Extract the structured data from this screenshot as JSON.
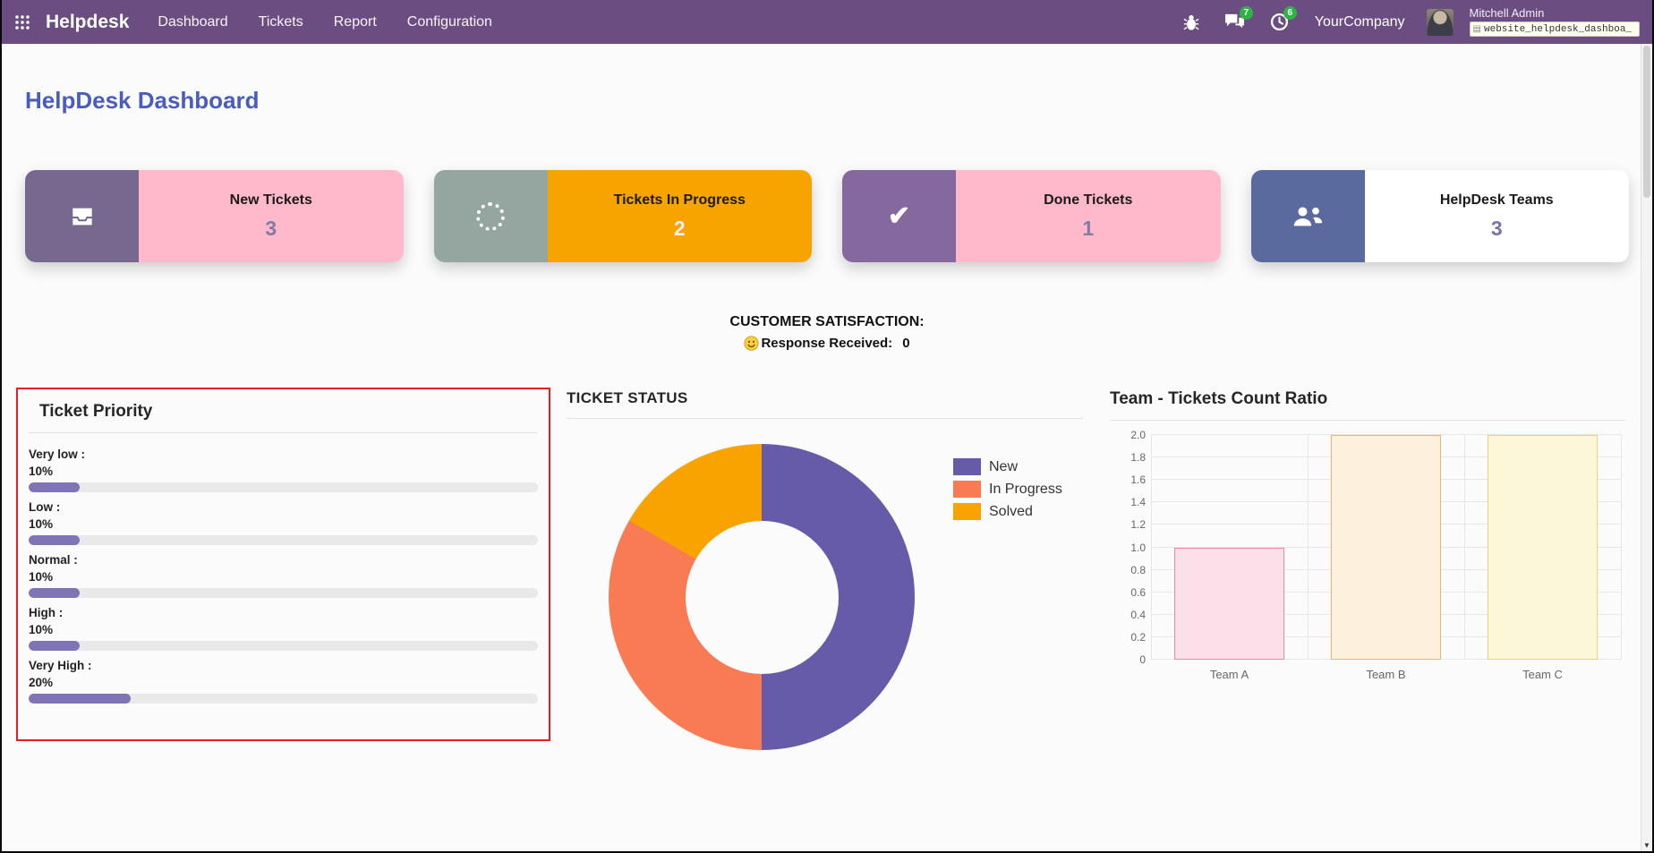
{
  "colors": {
    "navbar_bg": "#6c4d82",
    "page_title": "#4a5cbe",
    "badge_green": "#2fb344",
    "highlight_red": "#ed1c24"
  },
  "navbar": {
    "brand": "Helpdesk",
    "menus": [
      "Dashboard",
      "Tickets",
      "Report",
      "Configuration"
    ],
    "chat_badge": "7",
    "activity_badge": "6",
    "company": "YourCompany",
    "user": "Mitchell Admin",
    "debug_field": "website_helpdesk_dashboa_"
  },
  "page": {
    "title": "HelpDesk Dashboard"
  },
  "kpis": [
    {
      "label": "New Tickets",
      "value": "3",
      "icon": "inbox-icon",
      "icon_bg": "#77688f",
      "body_bg": "#ffb9ca",
      "value_color": "#837aa5"
    },
    {
      "label": "Tickets In Progress",
      "value": "2",
      "icon": "spinner-icon",
      "icon_bg": "#95a6a0",
      "body_bg": "#f7a400",
      "value_color": "#f3ecee"
    },
    {
      "label": "Done Tickets",
      "value": "1",
      "icon": "check-icon",
      "icon_bg": "#85689e",
      "body_bg": "#ffb9ca",
      "value_color": "#837aa5"
    },
    {
      "label": "HelpDesk Teams",
      "value": "3",
      "icon": "users-icon",
      "icon_bg": "#5b6a9e",
      "body_bg": "#ffffff",
      "value_color": "#7b74a3"
    }
  ],
  "satisfaction": {
    "title": "CUSTOMER SATISFACTION:",
    "icon": "smiley-icon",
    "label": "Response Received:",
    "value": "0"
  },
  "priority_panel": {
    "title": "Ticket Priority",
    "bar_color": "#8174b6",
    "items": [
      {
        "label": "Very low :",
        "percent": "10%",
        "value": 10
      },
      {
        "label": "Low :",
        "percent": "10%",
        "value": 10
      },
      {
        "label": "Normal :",
        "percent": "10%",
        "value": 10
      },
      {
        "label": "High :",
        "percent": "10%",
        "value": 10
      },
      {
        "label": "Very High :",
        "percent": "20%",
        "value": 20
      }
    ]
  },
  "chart_data": [
    {
      "type": "pie",
      "donut": true,
      "title": "TICKET STATUS",
      "labels": [
        "New",
        "In Progress",
        "Solved"
      ],
      "values": [
        3,
        2,
        1
      ],
      "colors": [
        "#655ba8",
        "#f97b53",
        "#f9a300"
      ],
      "legend_position": "right"
    },
    {
      "type": "bar",
      "title": "Team - Tickets Count Ratio",
      "categories": [
        "Team A",
        "Team B",
        "Team C"
      ],
      "values": [
        1,
        2,
        2
      ],
      "bar_colors": [
        "#fbdfe9",
        "#fdf0dc",
        "#fdf7da"
      ],
      "bar_borders": [
        "#ec87a9",
        "#eeb469",
        "#ecd36a"
      ],
      "ylim": [
        0,
        2
      ],
      "yticks": [
        0,
        0.2,
        0.4,
        0.6,
        0.8,
        1.0,
        1.2,
        1.4,
        1.6,
        1.8,
        2.0
      ],
      "grid": true,
      "legend_position": "none"
    }
  ]
}
